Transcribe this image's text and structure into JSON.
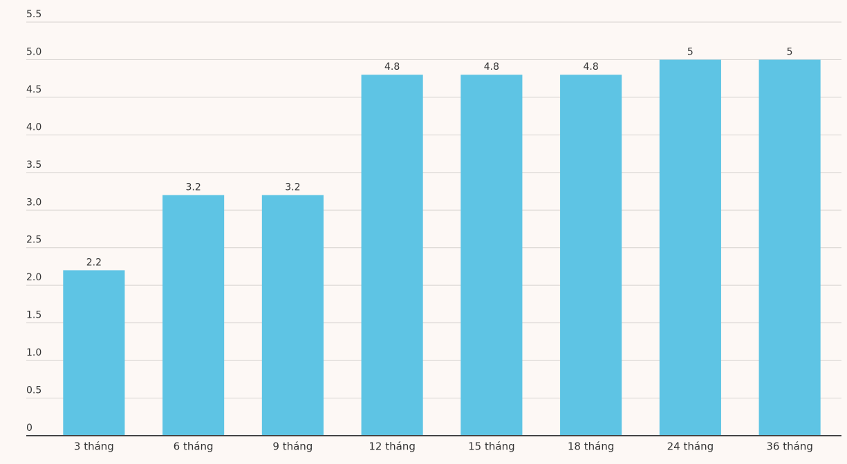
{
  "chart_data": {
    "type": "bar",
    "categories": [
      "3 tháng",
      "6 tháng",
      "9 tháng",
      "12 tháng",
      "15 tháng",
      "18 tháng",
      "24 tháng",
      "36 tháng"
    ],
    "values": [
      2.2,
      3.2,
      3.2,
      4.8,
      4.8,
      4.8,
      5,
      5
    ],
    "color": "#5ec4e4",
    "ylim": [
      0,
      5.5
    ],
    "yticks": [
      0,
      0.5,
      {
        "value": 1,
        "label": "1.0"
      },
      1.5,
      {
        "value": 2,
        "label": "2.0"
      },
      2.5,
      {
        "value": 3,
        "label": "3.0"
      },
      3.5,
      {
        "value": 4,
        "label": "4.0"
      },
      4.5,
      {
        "value": 5,
        "label": "5.0"
      },
      5.5
    ],
    "grid": true
  }
}
